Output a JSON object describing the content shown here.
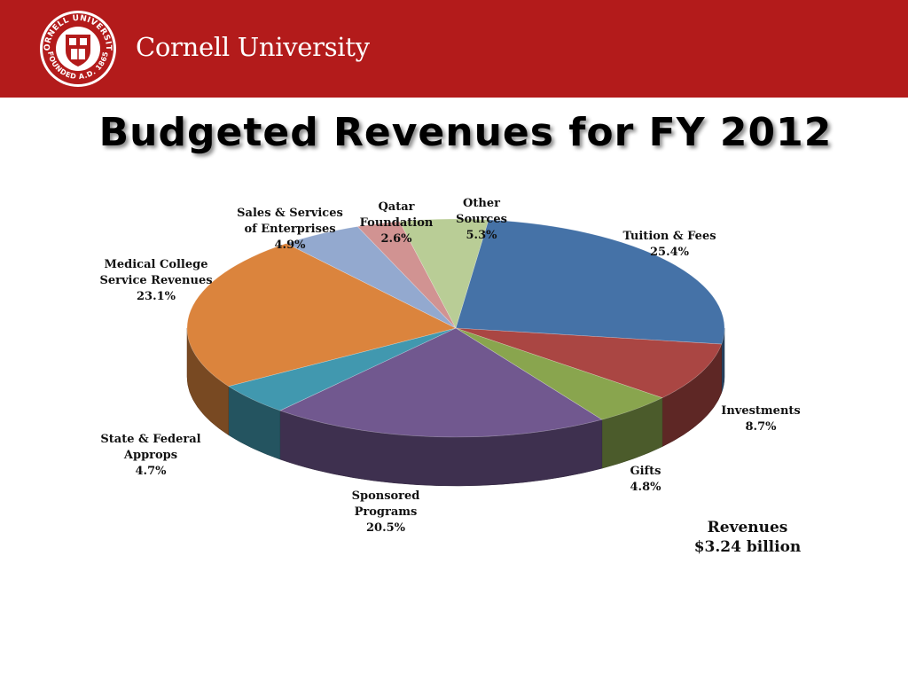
{
  "header": {
    "brand": "Cornell University",
    "seal_top_text": "CORNELL UNIVERSITY",
    "seal_bottom_text": "FOUNDED A.D. 1865"
  },
  "slide": {
    "title": "Budgeted Revenues for FY 2012"
  },
  "chart_data": {
    "type": "pie",
    "title": "Budgeted Revenues for FY 2012",
    "total_label": [
      "Revenues",
      "$3.24 billion"
    ],
    "slices": [
      {
        "label": [
          "Tuition & Fees"
        ],
        "pct_text": "25.4%",
        "value": 25.4,
        "color": "#4572a7"
      },
      {
        "label": [
          "Investments"
        ],
        "pct_text": "8.7%",
        "value": 8.7,
        "color": "#aa4643"
      },
      {
        "label": [
          "Gifts"
        ],
        "pct_text": "4.8%",
        "value": 4.8,
        "color": "#89a54e"
      },
      {
        "label": [
          "Sponsored",
          "Programs"
        ],
        "pct_text": "20.5%",
        "value": 20.5,
        "color": "#71588f"
      },
      {
        "label": [
          "State & Federal",
          "Approps"
        ],
        "pct_text": "4.7%",
        "value": 4.7,
        "color": "#4198af"
      },
      {
        "label": [
          "Medical College",
          "Service Revenues"
        ],
        "pct_text": "23.1%",
        "value": 23.1,
        "color": "#db843d"
      },
      {
        "label": [
          "Sales & Services",
          "of Enterprises"
        ],
        "pct_text": "4.9%",
        "value": 4.9,
        "color": "#93a9cf"
      },
      {
        "label": [
          "Qatar",
          "Foundation"
        ],
        "pct_text": "2.6%",
        "value": 2.6,
        "color": "#d19392"
      },
      {
        "label": [
          "Other",
          "Sources"
        ],
        "pct_text": "5.3%",
        "value": 5.3,
        "color": "#b9cd96"
      }
    ]
  }
}
